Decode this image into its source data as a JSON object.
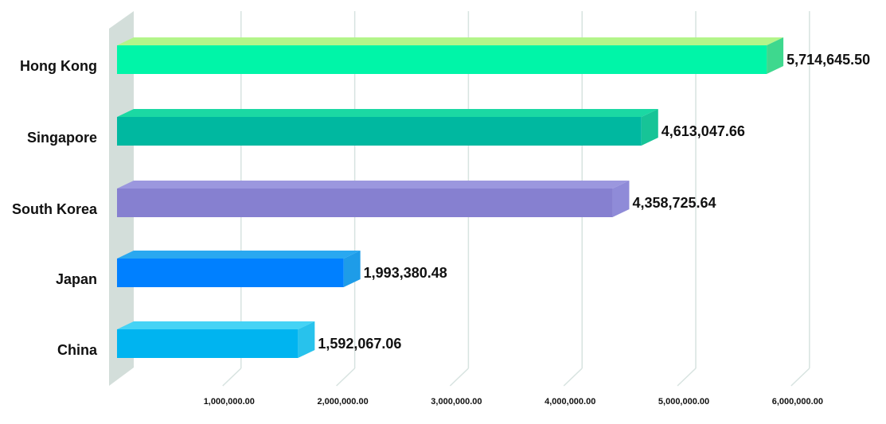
{
  "chart_data": {
    "type": "bar",
    "orientation": "horizontal",
    "style": "3d",
    "categories": [
      "Hong Kong",
      "Singapore",
      "South Korea",
      "Japan",
      "China"
    ],
    "values": [
      5714645.5,
      4613047.66,
      4358725.64,
      1993380.48,
      1592067.06
    ],
    "value_labels": [
      "5,714,645.50",
      "4,613,047.66",
      "4,358,725.64",
      "1,993,380.48",
      "1,592,067.06"
    ],
    "bar_colors": [
      "#00F5A8",
      "#00B8A0",
      "#8680D0",
      "#0080FF",
      "#00B4F0"
    ],
    "bar_top_colors": [
      "#B3F58A",
      "#1BD8A3",
      "#9B97DE",
      "#2AA8F0",
      "#45D3F5"
    ],
    "bar_side_colors": [
      "#3ED88E",
      "#17C497",
      "#8F8BD8",
      "#1E9CE8",
      "#28C2EC"
    ],
    "x_ticks": [
      1000000,
      2000000,
      3000000,
      4000000,
      5000000,
      6000000
    ],
    "x_tick_labels": [
      "1,000,000.00",
      "2,000,000.00",
      "3,000,000.00",
      "4,000,000.00",
      "5,000,000.00",
      "6,000,000.00"
    ],
    "xlim": [
      0,
      6000000
    ],
    "grid": true,
    "legend": "none",
    "title": "",
    "xlabel": "",
    "ylabel": ""
  },
  "colors": {
    "wall": "#D3DEDA",
    "gridline": "#D7E3E0",
    "text": "#111111"
  }
}
